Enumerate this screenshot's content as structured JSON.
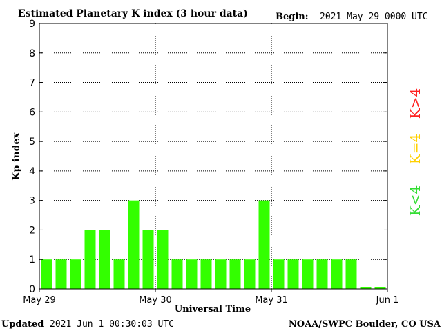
{
  "header": {
    "title": "Estimated Planetary K index (3 hour data)",
    "begin_label": "Begin:",
    "begin_value": "2021 May 29 0000 UTC"
  },
  "footer": {
    "updated_label": "Updated",
    "updated_value": "2021 Jun  1 00:30:03 UTC",
    "source": "NOAA/SWPC Boulder, CO USA"
  },
  "legend": {
    "items": [
      {
        "label": "K>4",
        "color": "#ff2020"
      },
      {
        "label": "K=4",
        "color": "#ffd000"
      },
      {
        "label": "K<4",
        "color": "#33dd33"
      }
    ]
  },
  "chart_data": {
    "type": "bar",
    "ylabel": "Kp index",
    "xlabel": "Universal Time",
    "ylim": [
      0,
      9
    ],
    "y_ticks": [
      "0",
      "1",
      "2",
      "3",
      "4",
      "5",
      "6",
      "7",
      "8",
      "9"
    ],
    "x_ticks": [
      "May 29",
      "May 30",
      "May 31",
      "Jun 1"
    ],
    "bar_color": "#33ff00",
    "grid": true,
    "values": [
      1,
      1,
      1,
      2,
      2,
      1,
      3,
      2,
      2,
      1,
      1,
      1,
      1,
      1,
      1,
      3,
      1,
      1,
      1,
      1,
      1,
      1,
      0.07,
      0.07
    ]
  }
}
